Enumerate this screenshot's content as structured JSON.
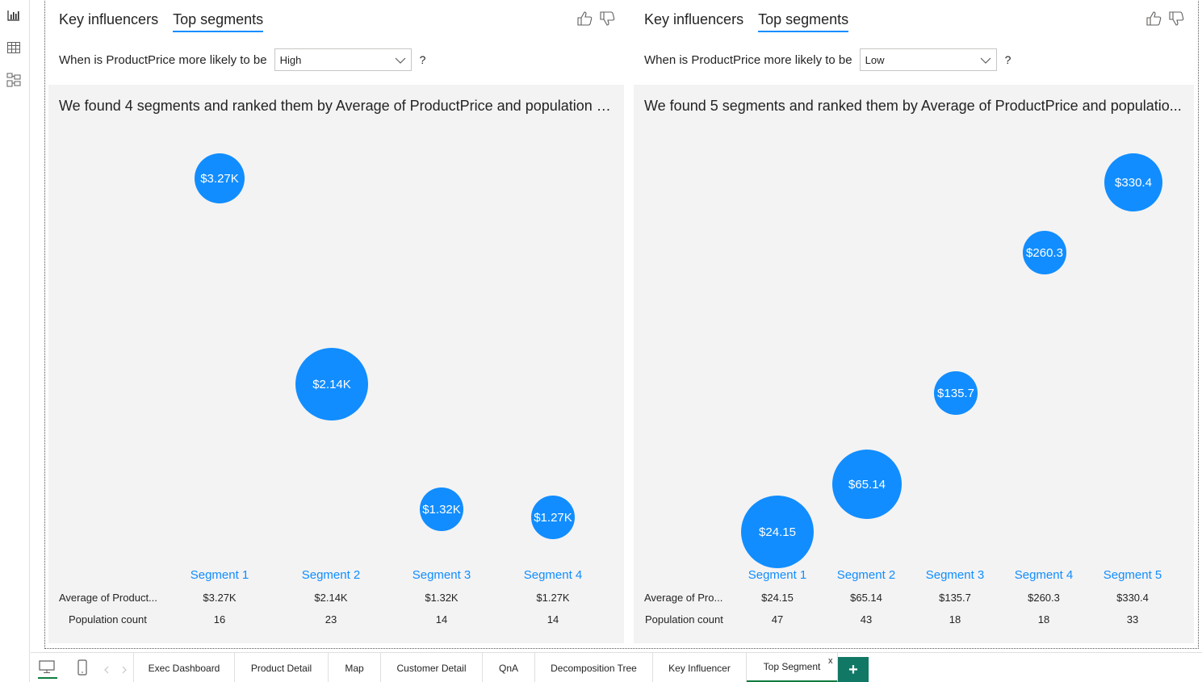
{
  "rail": {
    "icons": [
      "report-view-icon",
      "table-view-icon",
      "model-view-icon"
    ]
  },
  "visuals": [
    {
      "tabs": [
        {
          "label": "Key influencers",
          "active": false
        },
        {
          "label": "Top segments",
          "active": true
        }
      ],
      "question_label": "When is ProductPrice more likely to be",
      "dropdown_value": "High",
      "question_mark": "?",
      "summary": "We found 4 segments and ranked them by Average of ProductPrice and population si...",
      "row_labels": {
        "avg": "Average of Product...",
        "pop": "Population count"
      },
      "segments": [
        {
          "label": "Segment 1",
          "bubble": "$3.27K",
          "avg": "$3.27K",
          "pop": "16"
        },
        {
          "label": "Segment 2",
          "bubble": "$2.14K",
          "avg": "$2.14K",
          "pop": "23"
        },
        {
          "label": "Segment 3",
          "bubble": "$1.32K",
          "avg": "$1.32K",
          "pop": "14"
        },
        {
          "label": "Segment 4",
          "bubble": "$1.27K",
          "avg": "$1.27K",
          "pop": "14"
        }
      ]
    },
    {
      "tabs": [
        {
          "label": "Key influencers",
          "active": false
        },
        {
          "label": "Top segments",
          "active": true
        }
      ],
      "question_label": "When is ProductPrice more likely to be",
      "dropdown_value": "Low",
      "question_mark": "?",
      "summary": "We found 5 segments and ranked them by Average of ProductPrice and populatio...",
      "row_labels": {
        "avg": "Average of Pro...",
        "pop": "Population count"
      },
      "segments": [
        {
          "label": "Segment 1",
          "bubble": "$24.15",
          "avg": "$24.15",
          "pop": "47"
        },
        {
          "label": "Segment 2",
          "bubble": "$65.14",
          "avg": "$65.14",
          "pop": "43"
        },
        {
          "label": "Segment 3",
          "bubble": "$135.7",
          "avg": "$135.7",
          "pop": "18"
        },
        {
          "label": "Segment 4",
          "bubble": "$260.3",
          "avg": "$260.3",
          "pop": "18"
        },
        {
          "label": "Segment 5",
          "bubble": "$330.4",
          "avg": "$330.4",
          "pop": "33"
        }
      ]
    }
  ],
  "page_tabs": [
    {
      "label": "Exec Dashboard",
      "active": false
    },
    {
      "label": "Product Detail",
      "active": false
    },
    {
      "label": "Map",
      "active": false
    },
    {
      "label": "Customer Detail",
      "active": false
    },
    {
      "label": "QnA",
      "active": false
    },
    {
      "label": "Decomposition Tree",
      "active": false
    },
    {
      "label": "Key Influencer",
      "active": false
    },
    {
      "label": "Top Segment",
      "active": true
    }
  ],
  "close_tab_glyph": "x",
  "add_page_glyph": "+",
  "colors": {
    "accent": "#118dff",
    "panel_bg": "#f3f3f3",
    "active_page": "#107c41",
    "add_button": "#117865"
  }
}
